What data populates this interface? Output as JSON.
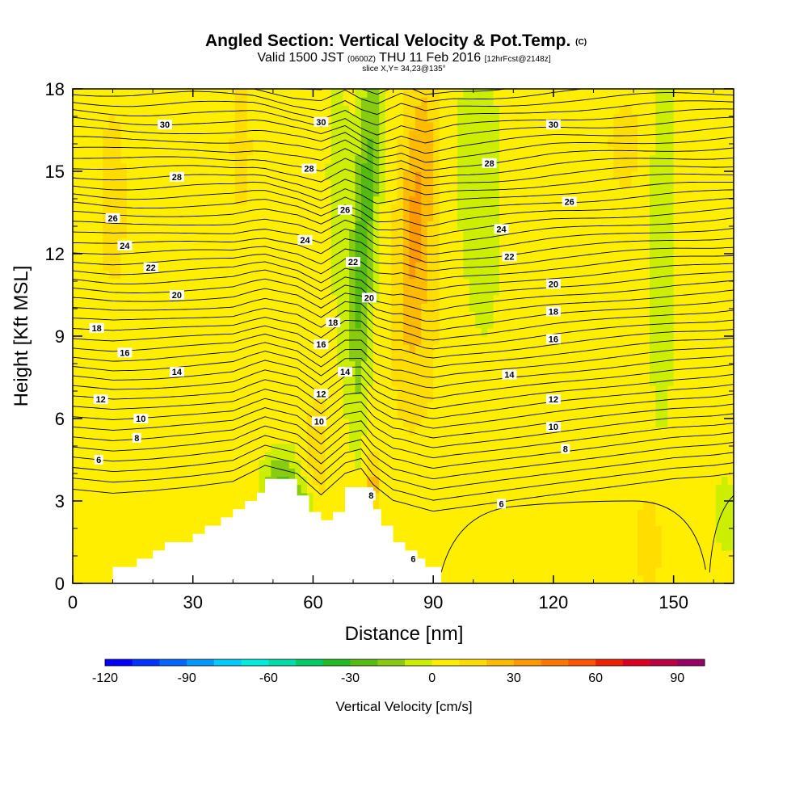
{
  "header": {
    "title": "Angled Section: Vertical Velocity & Pot.Temp.",
    "title_suffix": "(C)",
    "valid_prefix": "Valid 1500 JST",
    "valid_utc": "(0600Z)",
    "valid_date": "THU 11 Feb 2016",
    "forecast": "[12hrFcst@2148z]",
    "slice": "slice X,Y= 34,23@135°"
  },
  "chart_data": {
    "type": "heatmap",
    "xlabel": "Distance [nm]",
    "ylabel": "Height [Kft MSL]",
    "xlim": [
      0,
      165
    ],
    "ylim": [
      0,
      18
    ],
    "x_ticks": [
      0,
      30,
      60,
      90,
      120,
      150
    ],
    "y_ticks": [
      0,
      3,
      6,
      9,
      12,
      15,
      18
    ],
    "colorbar": {
      "title": "Vertical Velocity [cm/s]",
      "range": [
        -120,
        100
      ],
      "step": 10,
      "tick_values": [
        -120,
        -90,
        -60,
        -30,
        0,
        30,
        60,
        90
      ],
      "colors": [
        "#0000ff",
        "#0033ff",
        "#0066ff",
        "#0099ff",
        "#00ccff",
        "#00eedd",
        "#00ddaa",
        "#00cc66",
        "#22bb22",
        "#55bb11",
        "#88cc11",
        "#ccee00",
        "#ffee00",
        "#ffdd00",
        "#ffbb00",
        "#ff9900",
        "#ff7700",
        "#ff5500",
        "#ee2200",
        "#dd0022",
        "#bb0044",
        "#990066"
      ]
    },
    "terrain": [
      [
        10,
        0.3
      ],
      [
        10,
        0.6
      ],
      [
        16,
        0.6
      ],
      [
        16,
        0.9
      ],
      [
        20,
        0.9
      ],
      [
        20,
        1.2
      ],
      [
        23,
        1.2
      ],
      [
        23,
        1.5
      ],
      [
        30,
        1.5
      ],
      [
        30,
        1.8
      ],
      [
        33,
        1.8
      ],
      [
        33,
        2.1
      ],
      [
        37,
        2.1
      ],
      [
        37,
        2.4
      ],
      [
        40,
        2.4
      ],
      [
        40,
        2.7
      ],
      [
        43,
        2.7
      ],
      [
        43,
        3.0
      ],
      [
        46,
        3.0
      ],
      [
        46,
        3.3
      ],
      [
        48,
        3.3
      ],
      [
        48,
        3.8
      ],
      [
        56,
        3.8
      ],
      [
        56,
        3.2
      ],
      [
        59,
        3.2
      ],
      [
        59,
        2.6
      ],
      [
        62,
        2.6
      ],
      [
        62,
        2.3
      ],
      [
        65,
        2.3
      ],
      [
        65,
        2.6
      ],
      [
        68,
        2.6
      ],
      [
        68,
        3.5
      ],
      [
        75,
        3.5
      ],
      [
        75,
        2.7
      ],
      [
        77,
        2.7
      ],
      [
        77,
        2.1
      ],
      [
        80,
        2.1
      ],
      [
        80,
        1.5
      ],
      [
        83,
        1.5
      ],
      [
        83,
        1.2
      ],
      [
        86,
        1.2
      ],
      [
        86,
        0.9
      ],
      [
        88,
        0.9
      ],
      [
        88,
        0.6
      ],
      [
        92,
        0.6
      ],
      [
        92,
        0.3
      ]
    ],
    "theta_levels": [
      6,
      8,
      10,
      12,
      14,
      16,
      18,
      20,
      22,
      24,
      26,
      28,
      30
    ],
    "contour_labels": [
      {
        "x": 6.5,
        "y": 4.5,
        "text": "6"
      },
      {
        "x": 16,
        "y": 5.3,
        "text": "8"
      },
      {
        "x": 17,
        "y": 6.0,
        "text": "10"
      },
      {
        "x": 7,
        "y": 6.7,
        "text": "12"
      },
      {
        "x": 26,
        "y": 7.7,
        "text": "14"
      },
      {
        "x": 13,
        "y": 8.4,
        "text": "16"
      },
      {
        "x": 6,
        "y": 9.3,
        "text": "18"
      },
      {
        "x": 26,
        "y": 10.5,
        "text": "20"
      },
      {
        "x": 19.5,
        "y": 11.5,
        "text": "22"
      },
      {
        "x": 13,
        "y": 12.3,
        "text": "24"
      },
      {
        "x": 10,
        "y": 13.3,
        "text": "26"
      },
      {
        "x": 26,
        "y": 14.8,
        "text": "28"
      },
      {
        "x": 23,
        "y": 16.7,
        "text": "30"
      },
      {
        "x": 61.5,
        "y": 5.9,
        "text": "10"
      },
      {
        "x": 62,
        "y": 6.9,
        "text": "12"
      },
      {
        "x": 68,
        "y": 7.7,
        "text": "14"
      },
      {
        "x": 62,
        "y": 8.7,
        "text": "16"
      },
      {
        "x": 65,
        "y": 9.5,
        "text": "18"
      },
      {
        "x": 74,
        "y": 10.4,
        "text": "20"
      },
      {
        "x": 70,
        "y": 11.7,
        "text": "22"
      },
      {
        "x": 58,
        "y": 12.5,
        "text": "24"
      },
      {
        "x": 68,
        "y": 13.6,
        "text": "26"
      },
      {
        "x": 59,
        "y": 15.1,
        "text": "28"
      },
      {
        "x": 62,
        "y": 16.8,
        "text": "30"
      },
      {
        "x": 74.5,
        "y": 3.2,
        "text": "8"
      },
      {
        "x": 85,
        "y": 0.9,
        "text": "6"
      },
      {
        "x": 107,
        "y": 2.9,
        "text": "6"
      },
      {
        "x": 123,
        "y": 4.9,
        "text": "8"
      },
      {
        "x": 120,
        "y": 5.7,
        "text": "10"
      },
      {
        "x": 120,
        "y": 6.7,
        "text": "12"
      },
      {
        "x": 109,
        "y": 7.6,
        "text": "14"
      },
      {
        "x": 120,
        "y": 8.9,
        "text": "16"
      },
      {
        "x": 120,
        "y": 9.9,
        "text": "18"
      },
      {
        "x": 120,
        "y": 10.9,
        "text": "20"
      },
      {
        "x": 109,
        "y": 11.9,
        "text": "22"
      },
      {
        "x": 107,
        "y": 12.9,
        "text": "24"
      },
      {
        "x": 124,
        "y": 13.9,
        "text": "26"
      },
      {
        "x": 104,
        "y": 15.3,
        "text": "28"
      },
      {
        "x": 120,
        "y": 16.7,
        "text": "30"
      }
    ]
  }
}
